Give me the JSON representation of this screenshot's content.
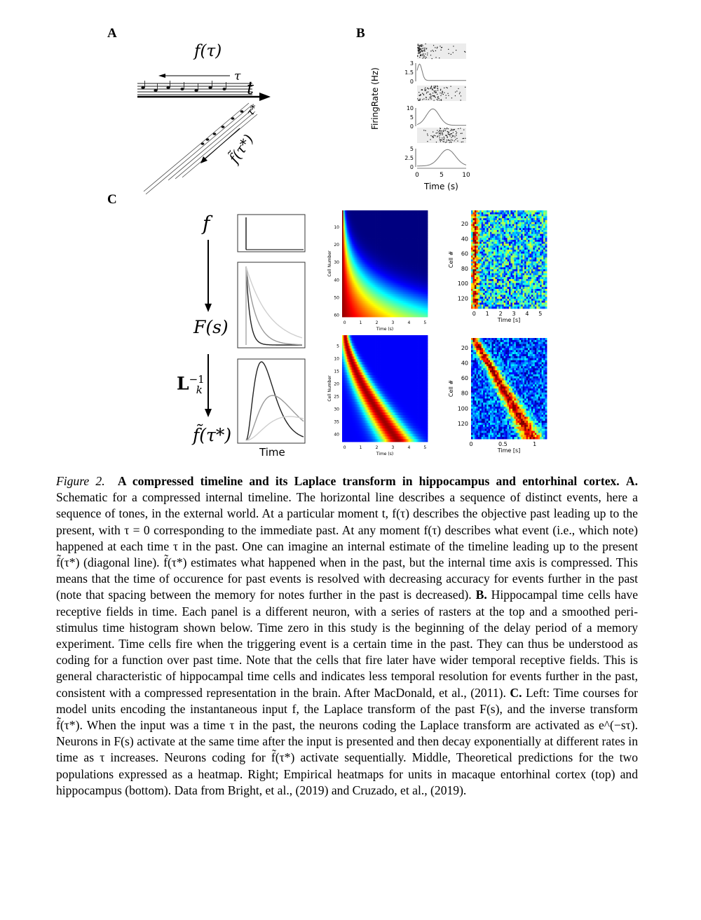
{
  "panels": {
    "a": {
      "label": "A",
      "f_tau": "f(τ)",
      "tau": "τ",
      "t": "t",
      "tau_star": "τ*",
      "f_tilde": "f̃(τ*)"
    },
    "b": {
      "label": "B",
      "ylabel": "FiringRate (Hz)",
      "xlabel": "Time (s)",
      "xticks": [
        "0",
        "5",
        "10"
      ],
      "yticks": [
        [
          "3",
          "1.5",
          "0"
        ],
        [
          "10",
          "5",
          "0"
        ],
        [
          "5",
          "2.5",
          "0"
        ]
      ]
    },
    "c": {
      "label": "C",
      "f": "f",
      "Fs": "F(s)",
      "Linv": "L",
      "Linv_sup": "−1",
      "Linv_sub": "k",
      "f_tilde": "f̃(τ*)",
      "time": "Time",
      "theory_top": {
        "ylabel": "Cell Number",
        "xlabel": "Time (s)",
        "yticks": [
          "10",
          "20",
          "30",
          "40",
          "50",
          "60"
        ],
        "xticks": [
          "0",
          "1",
          "2",
          "3",
          "4",
          "5"
        ]
      },
      "theory_bottom": {
        "ylabel": "Cell Number",
        "xlabel": "Time (s)",
        "yticks": [
          "5",
          "10",
          "15",
          "20",
          "25",
          "30",
          "35",
          "40"
        ],
        "xticks": [
          "0",
          "1",
          "2",
          "3",
          "4",
          "5"
        ]
      },
      "emp_top": {
        "ylabel": "Cell #",
        "xlabel": "Time [s]",
        "yticks": [
          "20",
          "40",
          "60",
          "80",
          "100",
          "120"
        ],
        "xticks": [
          "0",
          "1",
          "2",
          "3",
          "4",
          "5"
        ]
      },
      "emp_bottom": {
        "ylabel": "Cell #",
        "xlabel": "Time [s]",
        "yticks": [
          "20",
          "40",
          "60",
          "80",
          "100",
          "120"
        ],
        "xticks": [
          "0",
          "0.5",
          "1"
        ]
      }
    }
  },
  "caption": {
    "figno": "Figure 2.",
    "title": "A compressed timeline and its Laplace transform in hippocampus and entorhinal cortex.",
    "a_label": "A.",
    "a_text": "Schematic for a compressed internal timeline. The horizontal line describes a sequence of distinct events, here a sequence of tones, in the external world. At a particular moment t, f(τ) describes the objective past leading up to the present, with τ = 0 corresponding to the immediate past. At any moment f(τ) describes what event (i.e., which note) happened at each time τ in the past. One can imagine an internal estimate of the timeline leading up to the present f̃(τ*) (diagonal line). f̃(τ*) estimates what happened when in the past, but the internal time axis is compressed. This means that the time of occurence for past events is resolved with decreasing accuracy for events further in the past (note that spacing between the memory for notes further in the past is decreased).",
    "b_label": "B.",
    "b_text": "Hippocampal time cells have receptive fields in time. Each panel is a different neuron, with a series of rasters at the top and a smoothed peri-stimulus time histogram shown below. Time zero in this study is the beginning of the delay period of a memory experiment. Time cells fire when the triggering event is a certain time in the past. They can thus be understood as coding for a function over past time. Note that the cells that fire later have wider temporal receptive fields. This is general characteristic of hippocampal time cells and indicates less temporal resolution for events further in the past, consistent with a compressed representation in the brain. After MacDonald, et al., (2011).",
    "c_label": "C.",
    "c_text": "Left: Time courses for model units encoding the instantaneous input f, the Laplace transform of the past F(s), and the inverse transform f̃(τ*). When the input was a time τ in the past, the neurons coding the Laplace transform are activated as e^(−sτ). Neurons in F(s) activate at the same time after the input is presented and then decay exponentially at different rates in time as τ increases. Neurons coding for f̃(τ*) activate sequentially. Middle, Theoretical predictions for the two populations expressed as a heatmap. Right; Empirical heatmaps for units in macaque entorhinal cortex (top) and hippocampus (bottom). Data from Bright, et al., (2019) and Cruzado, et al., (2019)."
  }
}
